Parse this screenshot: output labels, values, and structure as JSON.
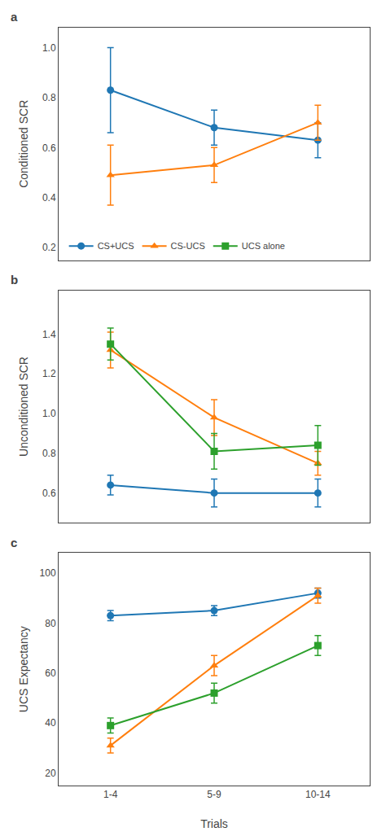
{
  "chart_data": [
    {
      "type": "line",
      "title": "a",
      "ylabel": "Conditioned SCR",
      "categories": [
        null,
        null,
        null
      ],
      "ylim": [
        0.15,
        1.08
      ],
      "yticks": [
        0.2,
        0.4,
        0.6,
        0.8,
        {
          "value": 1.0,
          "label": "1.0"
        }
      ],
      "grid": false,
      "legend": "lower left",
      "series": [
        {
          "name": "CS+UCS",
          "color": "#1f77b4",
          "marker": "circle",
          "values": [
            0.83,
            0.68,
            0.63
          ],
          "errors": [
            0.17,
            0.07,
            0.07
          ]
        },
        {
          "name": "CS-UCS",
          "color": "#ff7f0e",
          "marker": "triangle-up",
          "values": [
            0.49,
            0.53,
            0.7
          ],
          "errors": [
            0.12,
            0.07,
            0.07
          ]
        },
        {
          "name": "UCS alone",
          "color": "#2ca02c",
          "marker": "square",
          "values": [
            null,
            null,
            null
          ],
          "errors": [
            null,
            null,
            null
          ]
        }
      ]
    },
    {
      "type": "line",
      "title": "b",
      "ylabel": "Unconditioned SCR",
      "categories": [
        null,
        null,
        null
      ],
      "ylim": [
        0.45,
        1.62
      ],
      "yticks": [
        0.6,
        0.8,
        {
          "value": 1.0,
          "label": "1.0"
        },
        1.2,
        1.4
      ],
      "grid": false,
      "series": [
        {
          "name": "CS+UCS",
          "color": "#1f77b4",
          "marker": "circle",
          "values": [
            0.64,
            0.6,
            0.6
          ],
          "errors": [
            0.05,
            0.07,
            0.07
          ]
        },
        {
          "name": "CS-UCS",
          "color": "#ff7f0e",
          "marker": "triangle-up",
          "values": [
            1.32,
            0.98,
            0.75
          ],
          "errors": [
            0.09,
            0.09,
            0.06
          ]
        },
        {
          "name": "UCS alone",
          "color": "#2ca02c",
          "marker": "square",
          "values": [
            1.35,
            0.81,
            0.84
          ],
          "errors": [
            0.08,
            0.09,
            0.1
          ]
        }
      ]
    },
    {
      "type": "line",
      "title": "c",
      "ylabel": "UCS Expectancy",
      "xlabel": "Trials",
      "categories": [
        "1-4",
        "5-9",
        "10-14"
      ],
      "ylim": [
        15,
        108
      ],
      "yticks": [
        20,
        40,
        60,
        80,
        100
      ],
      "grid": false,
      "series": [
        {
          "name": "CS+UCS",
          "color": "#1f77b4",
          "marker": "circle",
          "values": [
            83,
            85,
            92
          ],
          "errors": [
            2,
            2,
            2
          ]
        },
        {
          "name": "CS-UCS",
          "color": "#ff7f0e",
          "marker": "triangle-up",
          "values": [
            31,
            63,
            91
          ],
          "errors": [
            3,
            4,
            3
          ]
        },
        {
          "name": "UCS alone",
          "color": "#2ca02c",
          "marker": "square",
          "values": [
            39,
            52,
            71
          ],
          "errors": [
            3,
            4,
            4
          ]
        }
      ]
    }
  ]
}
